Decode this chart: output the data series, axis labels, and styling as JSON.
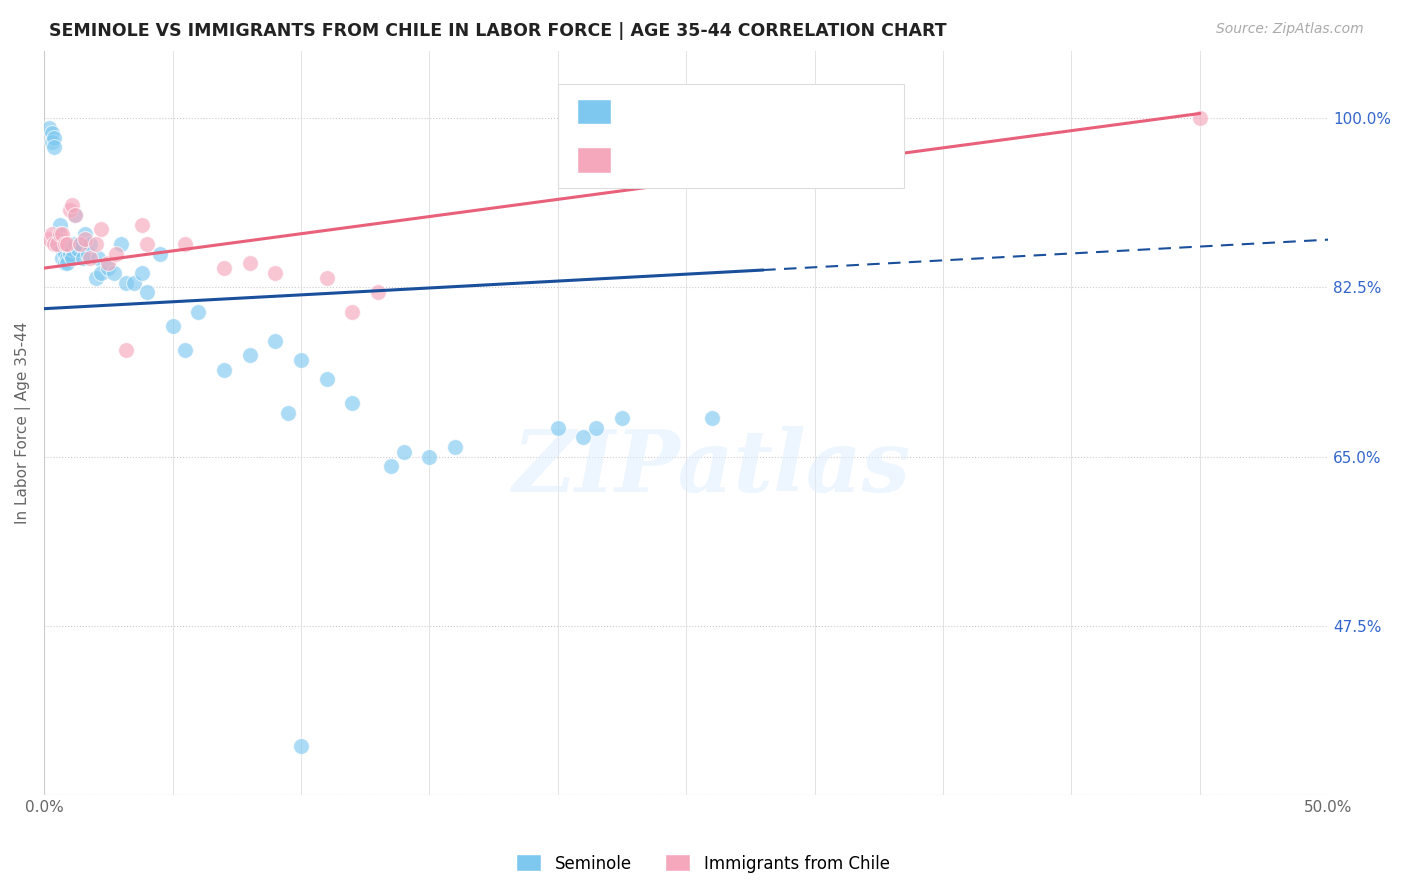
{
  "title": "SEMINOLE VS IMMIGRANTS FROM CHILE IN LABOR FORCE | AGE 35-44 CORRELATION CHART",
  "source": "Source: ZipAtlas.com",
  "ylabel": "In Labor Force | Age 35-44",
  "xlim": [
    0.0,
    0.5
  ],
  "ylim": [
    0.3,
    1.07
  ],
  "xticks": [
    0.0,
    0.05,
    0.1,
    0.15,
    0.2,
    0.25,
    0.3,
    0.35,
    0.4,
    0.45,
    0.5
  ],
  "xticklabels": [
    "0.0%",
    "",
    "",
    "",
    "",
    "",
    "",
    "",
    "",
    "",
    "50.0%"
  ],
  "ytick_positions": [
    0.475,
    0.65,
    0.825,
    1.0
  ],
  "ytick_labels": [
    "47.5%",
    "65.0%",
    "82.5%",
    "100.0%"
  ],
  "grid_lines": [
    0.3,
    0.475,
    0.65,
    0.825,
    1.0
  ],
  "blue_scatter_color": "#7ec8f0",
  "pink_scatter_color": "#f5a8bc",
  "blue_line_color": "#1a4f9c",
  "pink_line_color": "#e8607a",
  "right_tick_color": "#3366cc",
  "watermark": "ZIPatlas",
  "seminole_x": [
    0.002,
    0.003,
    0.003,
    0.004,
    0.004,
    0.005,
    0.005,
    0.006,
    0.006,
    0.007,
    0.007,
    0.008,
    0.008,
    0.009,
    0.009,
    0.01,
    0.01,
    0.011,
    0.011,
    0.012,
    0.012,
    0.013,
    0.014,
    0.015,
    0.016,
    0.017,
    0.018,
    0.02,
    0.021,
    0.022,
    0.025,
    0.027,
    0.03,
    0.032,
    0.035,
    0.038,
    0.04,
    0.045,
    0.05,
    0.055,
    0.06,
    0.07,
    0.08,
    0.09,
    0.095,
    0.1,
    0.11,
    0.12,
    0.135,
    0.14,
    0.15,
    0.16,
    0.2,
    0.21,
    0.215,
    0.225,
    0.26,
    0.1
  ],
  "seminole_y": [
    0.99,
    0.985,
    0.975,
    0.98,
    0.97,
    0.875,
    0.87,
    0.89,
    0.87,
    0.865,
    0.855,
    0.86,
    0.85,
    0.855,
    0.85,
    0.87,
    0.86,
    0.865,
    0.855,
    0.87,
    0.9,
    0.865,
    0.87,
    0.855,
    0.88,
    0.86,
    0.87,
    0.835,
    0.855,
    0.84,
    0.845,
    0.84,
    0.87,
    0.83,
    0.83,
    0.84,
    0.82,
    0.86,
    0.785,
    0.76,
    0.8,
    0.74,
    0.755,
    0.77,
    0.695,
    0.75,
    0.73,
    0.705,
    0.64,
    0.655,
    0.65,
    0.66,
    0.68,
    0.67,
    0.68,
    0.69,
    0.69,
    0.35
  ],
  "chile_x": [
    0.002,
    0.003,
    0.004,
    0.005,
    0.006,
    0.007,
    0.008,
    0.009,
    0.01,
    0.011,
    0.012,
    0.014,
    0.016,
    0.018,
    0.02,
    0.022,
    0.025,
    0.028,
    0.032,
    0.038,
    0.04,
    0.055,
    0.07,
    0.08,
    0.09,
    0.11,
    0.12,
    0.13,
    0.45
  ],
  "chile_y": [
    0.875,
    0.88,
    0.87,
    0.87,
    0.88,
    0.88,
    0.87,
    0.87,
    0.905,
    0.91,
    0.9,
    0.87,
    0.875,
    0.855,
    0.87,
    0.885,
    0.85,
    0.86,
    0.76,
    0.89,
    0.87,
    0.87,
    0.845,
    0.85,
    0.84,
    0.835,
    0.8,
    0.82,
    1.0
  ],
  "blue_trend_x0": 0.0,
  "blue_trend_x1": 0.28,
  "blue_trend_x_dash0": 0.28,
  "blue_trend_x_dash1": 0.5,
  "blue_trend_y0": 0.803,
  "blue_trend_y1": 0.843,
  "pink_trend_x0": 0.0,
  "pink_trend_x1": 0.45,
  "pink_trend_y0": 0.845,
  "pink_trend_y1": 1.005
}
